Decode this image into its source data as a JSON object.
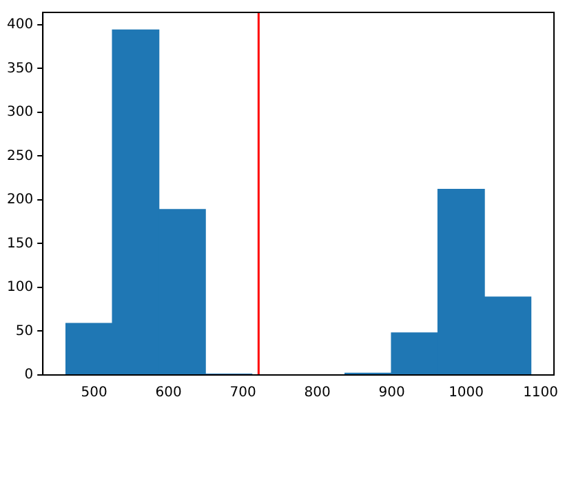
{
  "chart_data": {
    "type": "histogram",
    "bins": [
      462,
      524.5,
      587,
      649.5,
      712,
      774.5,
      837,
      899.5,
      962,
      1024.5,
      1087
    ],
    "values": [
      59,
      394,
      189,
      1,
      0,
      0,
      2,
      48,
      212,
      89
    ],
    "color": "#1f77b4",
    "xlim": [
      431,
      1118
    ],
    "xticks": [
      500,
      600,
      700,
      800,
      900,
      1000,
      1100
    ],
    "ylim": [
      0,
      414
    ],
    "yticks": [
      0,
      50,
      100,
      150,
      200,
      250,
      300,
      350,
      400
    ],
    "ref_lines": [
      {
        "axis": "x",
        "value": 721,
        "color": "#ff0000"
      }
    ],
    "grid": false,
    "legend": false
  }
}
